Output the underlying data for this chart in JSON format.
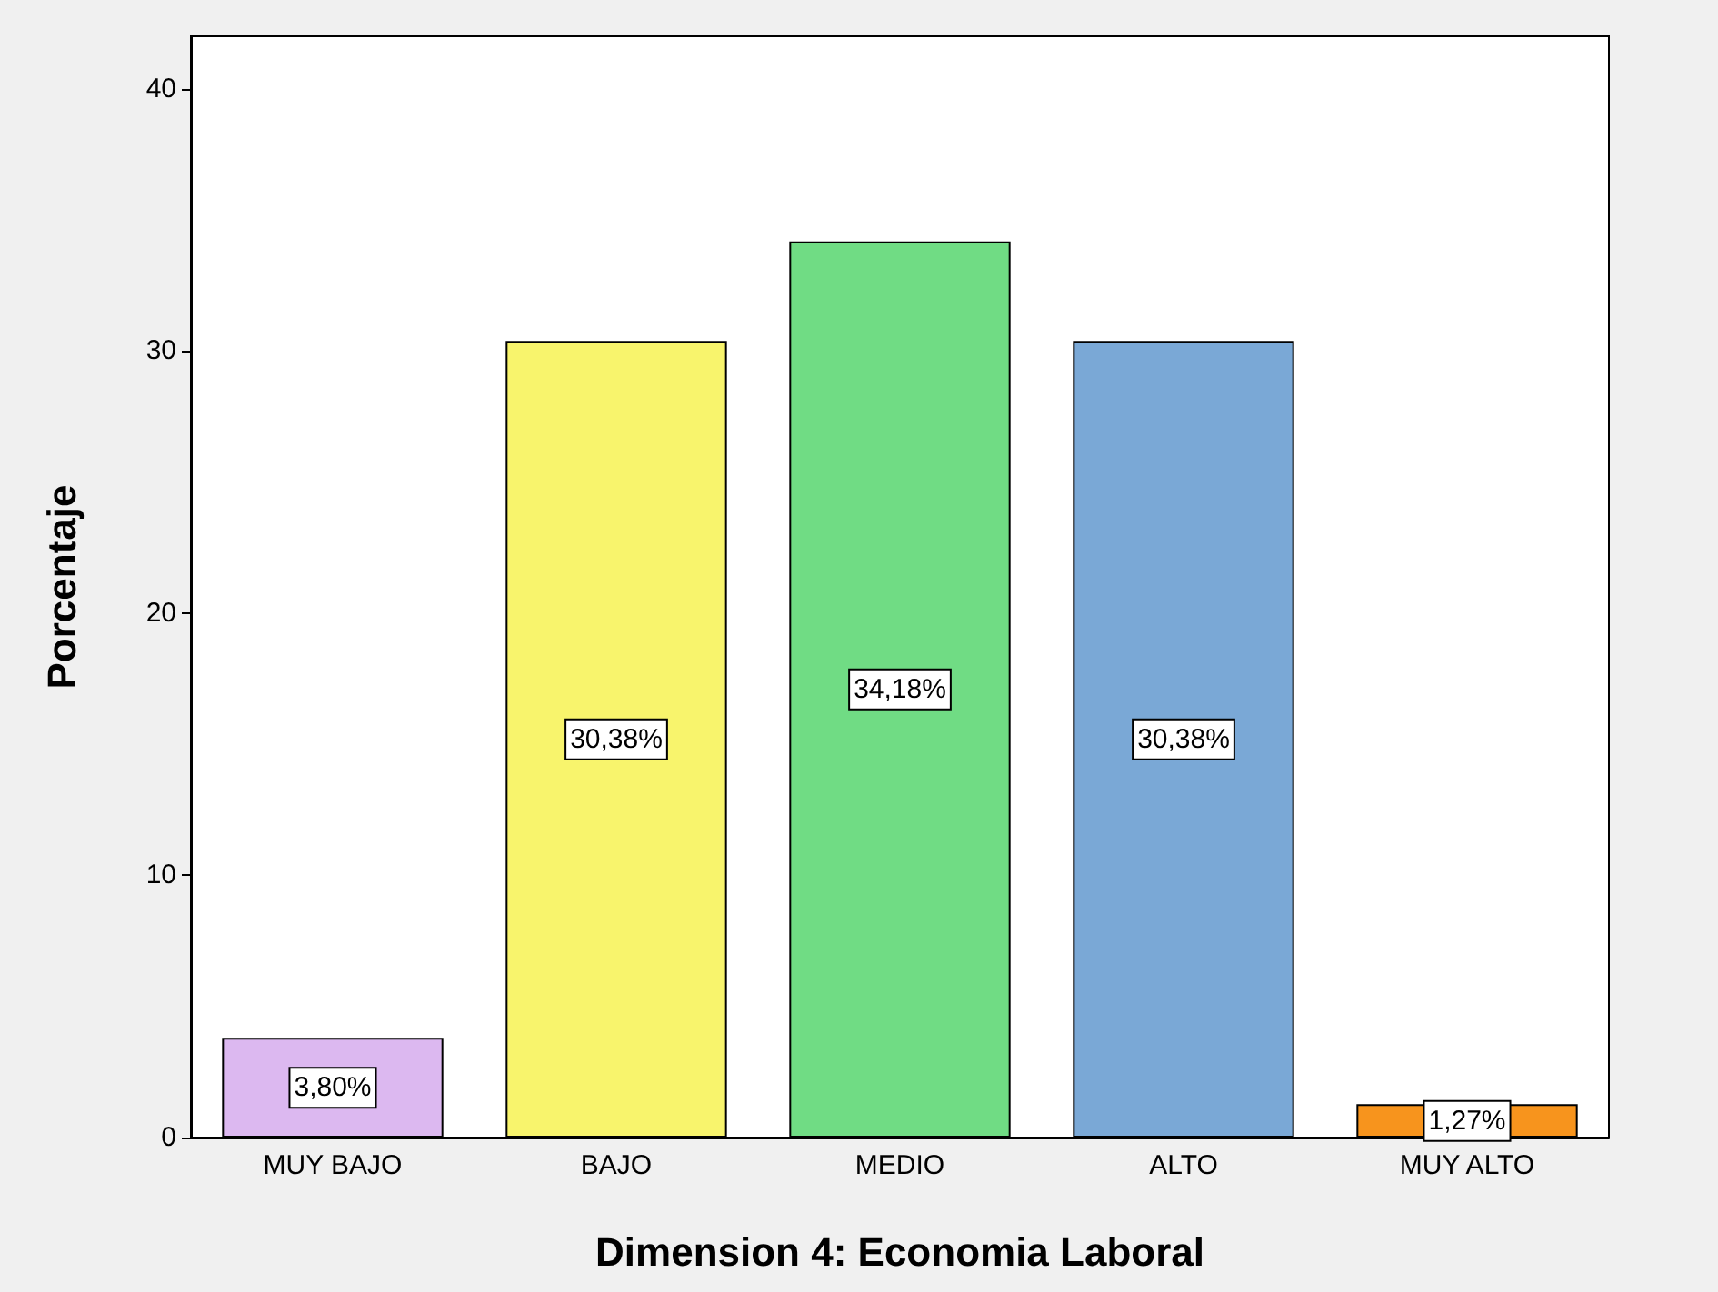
{
  "chart_data": {
    "type": "bar",
    "xlabel": "Dimension 4: Economia Laboral",
    "ylabel": "Porcentaje",
    "categories": [
      "MUY BAJO",
      "BAJO",
      "MEDIO",
      "ALTO",
      "MUY ALTO"
    ],
    "values": [
      3.8,
      30.38,
      34.18,
      30.38,
      1.27
    ],
    "colors": [
      "#dcb8f0",
      "#f8f46c",
      "#70dc84",
      "#7aa8d6",
      "#f7941d"
    ],
    "value_labels": [
      "3,80%",
      "30,38%",
      "34,18%",
      "30,38%",
      "1,27%"
    ],
    "ylim": [
      0,
      42
    ],
    "yticks": [
      0,
      10,
      20,
      30,
      40
    ]
  }
}
